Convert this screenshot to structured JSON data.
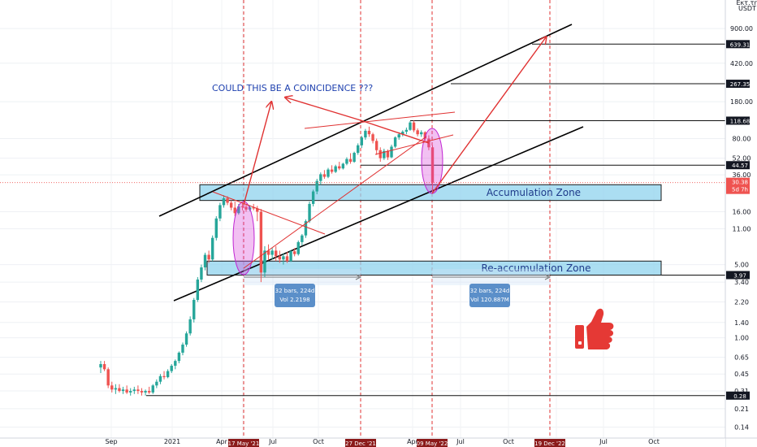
{
  "chart_data": {
    "type": "candlestick",
    "title": "COULD THIS BE A COINCIDENCE ???",
    "currency_top": "Εκτ.τη",
    "currency": "USDT",
    "scale": "log",
    "ylim": [
      0.11,
      1600
    ],
    "y_ticks": [
      "900.00",
      "420.00",
      "180.00",
      "80.00",
      "52.00",
      "36.00",
      "16.00",
      "11.00",
      "5.00",
      "3.40",
      "2.20",
      "1.40",
      "1.00",
      "0.65",
      "0.45",
      "0.31",
      "0.21",
      "0.14"
    ],
    "y_tick_values": [
      900,
      420,
      180,
      80,
      52,
      36,
      16,
      11,
      5,
      3.4,
      2.2,
      1.4,
      1.0,
      0.65,
      0.45,
      0.31,
      0.21,
      0.14
    ],
    "x_ticks": [
      "Sep",
      "2021",
      "Apr",
      "Jul",
      "Oct",
      "Apr",
      "Jul",
      "Oct",
      "Apr",
      "Jul",
      "Oct"
    ],
    "date_highlights": [
      "17 May '21",
      "27 Dec '21",
      "09 May '22",
      "19 Dec '22"
    ],
    "current_price": {
      "value": "30.38",
      "countdown": "5d 7h",
      "color": "#ef5350"
    },
    "horizontal_levels": [
      {
        "label": "639.31",
        "value": 639.31
      },
      {
        "label": "267.35",
        "value": 267.35
      },
      {
        "label": "118.68",
        "value": 118.68
      },
      {
        "label": "44.57",
        "value": 44.57
      },
      {
        "label": "3.97",
        "value": 3.97
      },
      {
        "label": "0.28",
        "value": 0.28
      }
    ],
    "zones": [
      {
        "label": "Accumulation Zone",
        "low": 20.5,
        "high": 29
      },
      {
        "label": "Re-accumulation Zone",
        "low": 3.97,
        "high": 5.4
      }
    ],
    "measurements": [
      {
        "bars": "32 bars, 224d",
        "vol": "Vol 2.2198"
      },
      {
        "bars": "32 bars, 224d",
        "vol": "Vol 120.887M"
      }
    ],
    "candles": [
      {
        "o": 0.52,
        "h": 0.6,
        "l": 0.46,
        "c": 0.56
      },
      {
        "o": 0.56,
        "h": 0.6,
        "l": 0.48,
        "c": 0.5
      },
      {
        "o": 0.5,
        "h": 0.52,
        "l": 0.33,
        "c": 0.35
      },
      {
        "o": 0.35,
        "h": 0.38,
        "l": 0.3,
        "c": 0.32
      },
      {
        "o": 0.32,
        "h": 0.36,
        "l": 0.29,
        "c": 0.33
      },
      {
        "o": 0.33,
        "h": 0.36,
        "l": 0.3,
        "c": 0.31
      },
      {
        "o": 0.31,
        "h": 0.34,
        "l": 0.29,
        "c": 0.32
      },
      {
        "o": 0.32,
        "h": 0.35,
        "l": 0.29,
        "c": 0.3
      },
      {
        "o": 0.3,
        "h": 0.33,
        "l": 0.28,
        "c": 0.31
      },
      {
        "o": 0.31,
        "h": 0.34,
        "l": 0.29,
        "c": 0.32
      },
      {
        "o": 0.32,
        "h": 0.35,
        "l": 0.29,
        "c": 0.31
      },
      {
        "o": 0.31,
        "h": 0.33,
        "l": 0.28,
        "c": 0.3
      },
      {
        "o": 0.3,
        "h": 0.32,
        "l": 0.28,
        "c": 0.31
      },
      {
        "o": 0.31,
        "h": 0.34,
        "l": 0.29,
        "c": 0.3
      },
      {
        "o": 0.3,
        "h": 0.36,
        "l": 0.29,
        "c": 0.35
      },
      {
        "o": 0.35,
        "h": 0.4,
        "l": 0.33,
        "c": 0.38
      },
      {
        "o": 0.38,
        "h": 0.45,
        "l": 0.36,
        "c": 0.43
      },
      {
        "o": 0.43,
        "h": 0.48,
        "l": 0.4,
        "c": 0.42
      },
      {
        "o": 0.42,
        "h": 0.5,
        "l": 0.41,
        "c": 0.48
      },
      {
        "o": 0.48,
        "h": 0.56,
        "l": 0.46,
        "c": 0.54
      },
      {
        "o": 0.54,
        "h": 0.62,
        "l": 0.5,
        "c": 0.6
      },
      {
        "o": 0.6,
        "h": 0.74,
        "l": 0.57,
        "c": 0.72
      },
      {
        "o": 0.72,
        "h": 0.9,
        "l": 0.68,
        "c": 0.86
      },
      {
        "o": 0.86,
        "h": 1.15,
        "l": 0.82,
        "c": 1.1
      },
      {
        "o": 1.1,
        "h": 1.6,
        "l": 1.05,
        "c": 1.5
      },
      {
        "o": 1.5,
        "h": 2.4,
        "l": 1.4,
        "c": 2.3
      },
      {
        "o": 2.3,
        "h": 3.8,
        "l": 2.2,
        "c": 3.6
      },
      {
        "o": 3.6,
        "h": 5.0,
        "l": 3.4,
        "c": 4.7
      },
      {
        "o": 4.7,
        "h": 6.5,
        "l": 4.4,
        "c": 6.2
      },
      {
        "o": 6.2,
        "h": 6.8,
        "l": 5.2,
        "c": 5.6
      },
      {
        "o": 5.6,
        "h": 9.5,
        "l": 5.4,
        "c": 9.0
      },
      {
        "o": 9.0,
        "h": 14.5,
        "l": 8.5,
        "c": 13.8
      },
      {
        "o": 13.8,
        "h": 19.5,
        "l": 13.0,
        "c": 18.5
      },
      {
        "o": 18.5,
        "h": 23.0,
        "l": 17.5,
        "c": 21.5
      },
      {
        "o": 21.5,
        "h": 22.5,
        "l": 18.5,
        "c": 19.5
      },
      {
        "o": 19.5,
        "h": 20.5,
        "l": 16.5,
        "c": 17.5
      },
      {
        "o": 17.5,
        "h": 20.0,
        "l": 14.5,
        "c": 15.5
      },
      {
        "o": 15.5,
        "h": 19.0,
        "l": 15.0,
        "c": 18.0
      },
      {
        "o": 18.0,
        "h": 19.5,
        "l": 16.5,
        "c": 17.8
      },
      {
        "o": 17.8,
        "h": 19.0,
        "l": 16.0,
        "c": 16.8
      },
      {
        "o": 16.8,
        "h": 18.5,
        "l": 16.2,
        "c": 17.6
      },
      {
        "o": 17.6,
        "h": 19.0,
        "l": 16.5,
        "c": 17.2
      },
      {
        "o": 17.2,
        "h": 18.2,
        "l": 13.0,
        "c": 16.0
      },
      {
        "o": 16.0,
        "h": 17.0,
        "l": 3.4,
        "c": 4.2
      },
      {
        "o": 4.2,
        "h": 7.5,
        "l": 3.8,
        "c": 6.8
      },
      {
        "o": 6.8,
        "h": 7.8,
        "l": 5.5,
        "c": 6.2
      },
      {
        "o": 6.2,
        "h": 7.2,
        "l": 5.6,
        "c": 6.8
      },
      {
        "o": 6.8,
        "h": 7.5,
        "l": 5.4,
        "c": 6.0
      },
      {
        "o": 6.0,
        "h": 6.8,
        "l": 5.2,
        "c": 5.6
      },
      {
        "o": 5.6,
        "h": 6.4,
        "l": 5.0,
        "c": 6.0
      },
      {
        "o": 6.0,
        "h": 6.6,
        "l": 5.2,
        "c": 5.4
      },
      {
        "o": 5.4,
        "h": 6.9,
        "l": 5.3,
        "c": 6.7
      },
      {
        "o": 6.7,
        "h": 7.2,
        "l": 6.0,
        "c": 6.3
      },
      {
        "o": 6.3,
        "h": 8.5,
        "l": 6.1,
        "c": 8.2
      },
      {
        "o": 8.2,
        "h": 9.8,
        "l": 7.6,
        "c": 9.5
      },
      {
        "o": 9.5,
        "h": 13.5,
        "l": 9.0,
        "c": 13.0
      },
      {
        "o": 13.0,
        "h": 20.0,
        "l": 12.5,
        "c": 19.0
      },
      {
        "o": 19.0,
        "h": 26.0,
        "l": 18.0,
        "c": 25.0
      },
      {
        "o": 25.0,
        "h": 33.0,
        "l": 23.5,
        "c": 31.5
      },
      {
        "o": 31.5,
        "h": 38.0,
        "l": 29.0,
        "c": 36.5
      },
      {
        "o": 36.5,
        "h": 40.0,
        "l": 33.0,
        "c": 34.5
      },
      {
        "o": 34.5,
        "h": 42.0,
        "l": 33.5,
        "c": 40.5
      },
      {
        "o": 40.5,
        "h": 44.5,
        "l": 37.0,
        "c": 38.5
      },
      {
        "o": 38.5,
        "h": 45.0,
        "l": 37.5,
        "c": 43.5
      },
      {
        "o": 43.5,
        "h": 48.0,
        "l": 40.0,
        "c": 41.5
      },
      {
        "o": 41.5,
        "h": 47.0,
        "l": 40.5,
        "c": 46.0
      },
      {
        "o": 46.0,
        "h": 53.0,
        "l": 44.5,
        "c": 51.0
      },
      {
        "o": 51.0,
        "h": 58.0,
        "l": 46.0,
        "c": 48.0
      },
      {
        "o": 48.0,
        "h": 60.0,
        "l": 47.0,
        "c": 58.5
      },
      {
        "o": 58.5,
        "h": 72.0,
        "l": 56.0,
        "c": 69.0
      },
      {
        "o": 69.0,
        "h": 85.0,
        "l": 65.0,
        "c": 82.0
      },
      {
        "o": 82.0,
        "h": 99.0,
        "l": 78.0,
        "c": 95.0
      },
      {
        "o": 95.0,
        "h": 104.0,
        "l": 83.0,
        "c": 88.0
      },
      {
        "o": 88.0,
        "h": 91.0,
        "l": 72.0,
        "c": 76.0
      },
      {
        "o": 76.0,
        "h": 80.0,
        "l": 56.0,
        "c": 62.0
      },
      {
        "o": 62.0,
        "h": 66.0,
        "l": 48.0,
        "c": 52.0
      },
      {
        "o": 52.0,
        "h": 64.0,
        "l": 50.0,
        "c": 61.0
      },
      {
        "o": 61.0,
        "h": 63.0,
        "l": 50.0,
        "c": 53.0
      },
      {
        "o": 53.0,
        "h": 70.0,
        "l": 52.0,
        "c": 67.0
      },
      {
        "o": 67.0,
        "h": 84.0,
        "l": 65.0,
        "c": 82.0
      },
      {
        "o": 82.0,
        "h": 92.0,
        "l": 78.0,
        "c": 88.0
      },
      {
        "o": 88.0,
        "h": 96.0,
        "l": 84.0,
        "c": 93.0
      },
      {
        "o": 93.0,
        "h": 102.0,
        "l": 88.0,
        "c": 97.0
      },
      {
        "o": 97.0,
        "h": 118.0,
        "l": 95.0,
        "c": 114.0
      },
      {
        "o": 114.0,
        "h": 119.0,
        "l": 92.0,
        "c": 96.0
      },
      {
        "o": 96.0,
        "h": 100.0,
        "l": 84.0,
        "c": 88.0
      },
      {
        "o": 88.0,
        "h": 96.0,
        "l": 83.0,
        "c": 92.0
      },
      {
        "o": 92.0,
        "h": 94.0,
        "l": 76.0,
        "c": 80.0
      },
      {
        "o": 80.0,
        "h": 86.0,
        "l": 62.0,
        "c": 66.0
      },
      {
        "o": 66.0,
        "h": 69.0,
        "l": 25.0,
        "c": 30.38
      }
    ]
  }
}
